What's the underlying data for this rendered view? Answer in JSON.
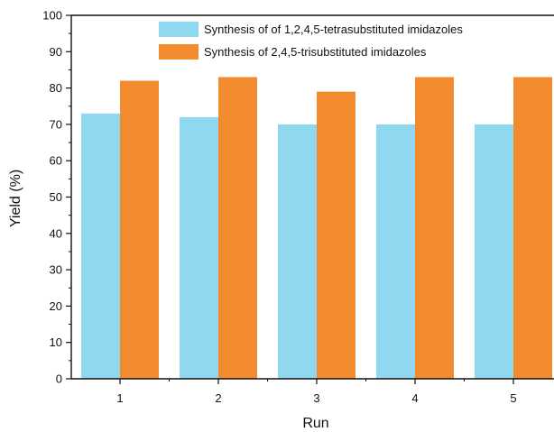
{
  "chart_data": {
    "type": "bar",
    "title": "",
    "xlabel": "Run",
    "ylabel": "Yield (%)",
    "categories": [
      "1",
      "2",
      "3",
      "4",
      "5"
    ],
    "ylim": [
      0,
      100
    ],
    "yticks": [
      "0",
      "10",
      "20",
      "30",
      "40",
      "50",
      "60",
      "70",
      "80",
      "90",
      "100"
    ],
    "grid": false,
    "legend_position": "top-right",
    "series": [
      {
        "name": "Synthesis of of 1,2,4,5-tetrasubstituted imidazoles",
        "values": [
          73,
          72,
          70,
          70,
          70
        ],
        "color": "#8fd8f0"
      },
      {
        "name": "Synthesis of 2,4,5-trisubstituted imidazoles",
        "values": [
          82,
          83,
          79,
          83,
          83
        ],
        "color": "#f28a2e"
      }
    ]
  }
}
